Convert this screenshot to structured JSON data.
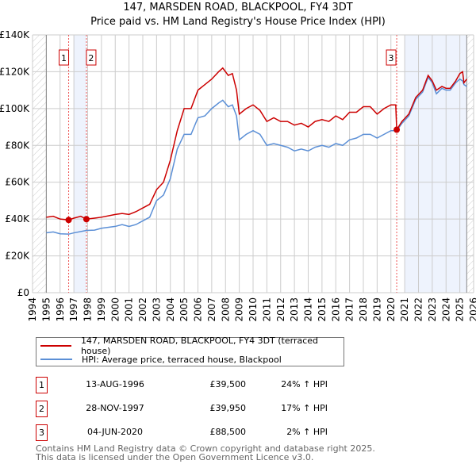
{
  "title": "147, MARSDEN ROAD, BLACKPOOL, FY4 3DT",
  "subtitle": "Price paid vs. HM Land Registry's House Price Index (HPI)",
  "chart_data": {
    "type": "line",
    "xlim": [
      1994,
      2026
    ],
    "ylim": [
      0,
      140000
    ],
    "x_ticks": [
      "1994",
      "1995",
      "1996",
      "1997",
      "1998",
      "1999",
      "2000",
      "2001",
      "2002",
      "2003",
      "2004",
      "2005",
      "2006",
      "2007",
      "2008",
      "2009",
      "2010",
      "2011",
      "2012",
      "2013",
      "2014",
      "2015",
      "2016",
      "2017",
      "2018",
      "2019",
      "2020",
      "2021",
      "2022",
      "2023",
      "2024",
      "2025",
      "2026"
    ],
    "y_ticks": [
      {
        "v": 0,
        "label": "£0"
      },
      {
        "v": 20000,
        "label": "£20K"
      },
      {
        "v": 40000,
        "label": "£40K"
      },
      {
        "v": 60000,
        "label": "£60K"
      },
      {
        "v": 80000,
        "label": "£80K"
      },
      {
        "v": 100000,
        "label": "£100K"
      },
      {
        "v": 120000,
        "label": "£120K"
      },
      {
        "v": 140000,
        "label": "£140K"
      }
    ],
    "grid": true,
    "series": [
      {
        "name": "147, MARSDEN ROAD, BLACKPOOL, FY4 3DT (terraced house)",
        "color": "#cc0000",
        "x": [
          1995,
          1995.5,
          1996,
          1996.62,
          1997,
          1997.5,
          1997.91,
          1998.5,
          1999,
          2000,
          2000.5,
          2001,
          2001.5,
          2002,
          2002.5,
          2003,
          2003.5,
          2004,
          2004.5,
          2005,
          2005.5,
          2006,
          2006.5,
          2007,
          2007.5,
          2007.8,
          2008.2,
          2008.5,
          2008.8,
          2009,
          2009.5,
          2010,
          2010.5,
          2011,
          2011.5,
          2012,
          2012.5,
          2013,
          2013.5,
          2014,
          2014.5,
          2015,
          2015.5,
          2016,
          2016.5,
          2017,
          2017.5,
          2018,
          2018.5,
          2019,
          2019.5,
          2020,
          2020.35,
          2020.42,
          2020.8,
          2021.3,
          2021.8,
          2022.3,
          2022.7,
          2023,
          2023.3,
          2023.7,
          2024,
          2024.3,
          2024.7,
          2025,
          2025.2,
          2025.3,
          2025.5
        ],
        "y": [
          41000,
          41500,
          40000,
          39500,
          40500,
          41500,
          39950,
          40500,
          41000,
          42500,
          43000,
          42500,
          44000,
          46000,
          48000,
          56000,
          60000,
          72000,
          88000,
          100000,
          100000,
          110000,
          113000,
          116000,
          120000,
          122000,
          118000,
          119000,
          110000,
          97000,
          100000,
          102000,
          99000,
          93000,
          95000,
          93000,
          93000,
          91000,
          92000,
          90000,
          93000,
          94000,
          93000,
          96000,
          94000,
          98000,
          98000,
          101000,
          101000,
          97000,
          100000,
          102000,
          102000,
          88500,
          93000,
          97000,
          106000,
          110000,
          118000,
          115000,
          110000,
          112000,
          111000,
          111000,
          115000,
          119000,
          120000,
          114000,
          116000
        ]
      },
      {
        "name": "HPI: Average price, terraced house, Blackpool",
        "color": "#5b8fd6",
        "x": [
          1995,
          1995.5,
          1996,
          1996.62,
          1997,
          1997.91,
          1998.5,
          1999,
          2000,
          2000.5,
          2001,
          2001.5,
          2002,
          2002.5,
          2003,
          2003.5,
          2004,
          2004.5,
          2005,
          2005.5,
          2006,
          2006.5,
          2007,
          2007.5,
          2007.8,
          2008.2,
          2008.5,
          2008.8,
          2009,
          2009.5,
          2010,
          2010.5,
          2011,
          2011.5,
          2012,
          2012.5,
          2013,
          2013.5,
          2014,
          2014.5,
          2015,
          2015.5,
          2016,
          2016.5,
          2017,
          2017.5,
          2018,
          2018.5,
          2019,
          2019.5,
          2020,
          2020.42,
          2020.8,
          2021.3,
          2021.8,
          2022.3,
          2022.7,
          2023,
          2023.3,
          2023.7,
          2024,
          2024.3,
          2024.7,
          2025,
          2025.2,
          2025.3,
          2025.5
        ],
        "y": [
          32500,
          33000,
          32000,
          31800,
          32500,
          33800,
          34000,
          35000,
          36000,
          37000,
          36000,
          37000,
          39000,
          41000,
          50000,
          53000,
          62000,
          78000,
          86000,
          86000,
          95000,
          96000,
          100000,
          103000,
          104500,
          101000,
          102000,
          96000,
          83000,
          86000,
          88000,
          86000,
          80000,
          81000,
          80000,
          79000,
          77000,
          78000,
          77000,
          79000,
          80000,
          79000,
          81000,
          80000,
          83000,
          84000,
          86000,
          86000,
          84000,
          86000,
          88000,
          88000,
          92000,
          96000,
          105000,
          109000,
          117000,
          114000,
          108000,
          111000,
          110000,
          110000,
          114000,
          116000,
          115000,
          113000,
          112000
        ]
      }
    ],
    "sales": [
      {
        "id": "1",
        "date": "13-AUG-1996",
        "x": 1996.62,
        "price": 39500,
        "price_label": "£39,500",
        "hpi": "24% ↑ HPI"
      },
      {
        "id": "2",
        "date": "28-NOV-1997",
        "x": 1997.91,
        "price": 39950,
        "price_label": "£39,950",
        "hpi": "17% ↑ HPI"
      },
      {
        "id": "3",
        "date": "04-JUN-2020",
        "x": 2020.42,
        "price": 88500,
        "price_label": "£88,500",
        "hpi": "2% ↑ HPI"
      }
    ]
  },
  "footer": {
    "line1": "Contains HM Land Registry data © Crown copyright and database right 2025.",
    "line2": "This data is licensed under the Open Government Licence v3.0."
  }
}
